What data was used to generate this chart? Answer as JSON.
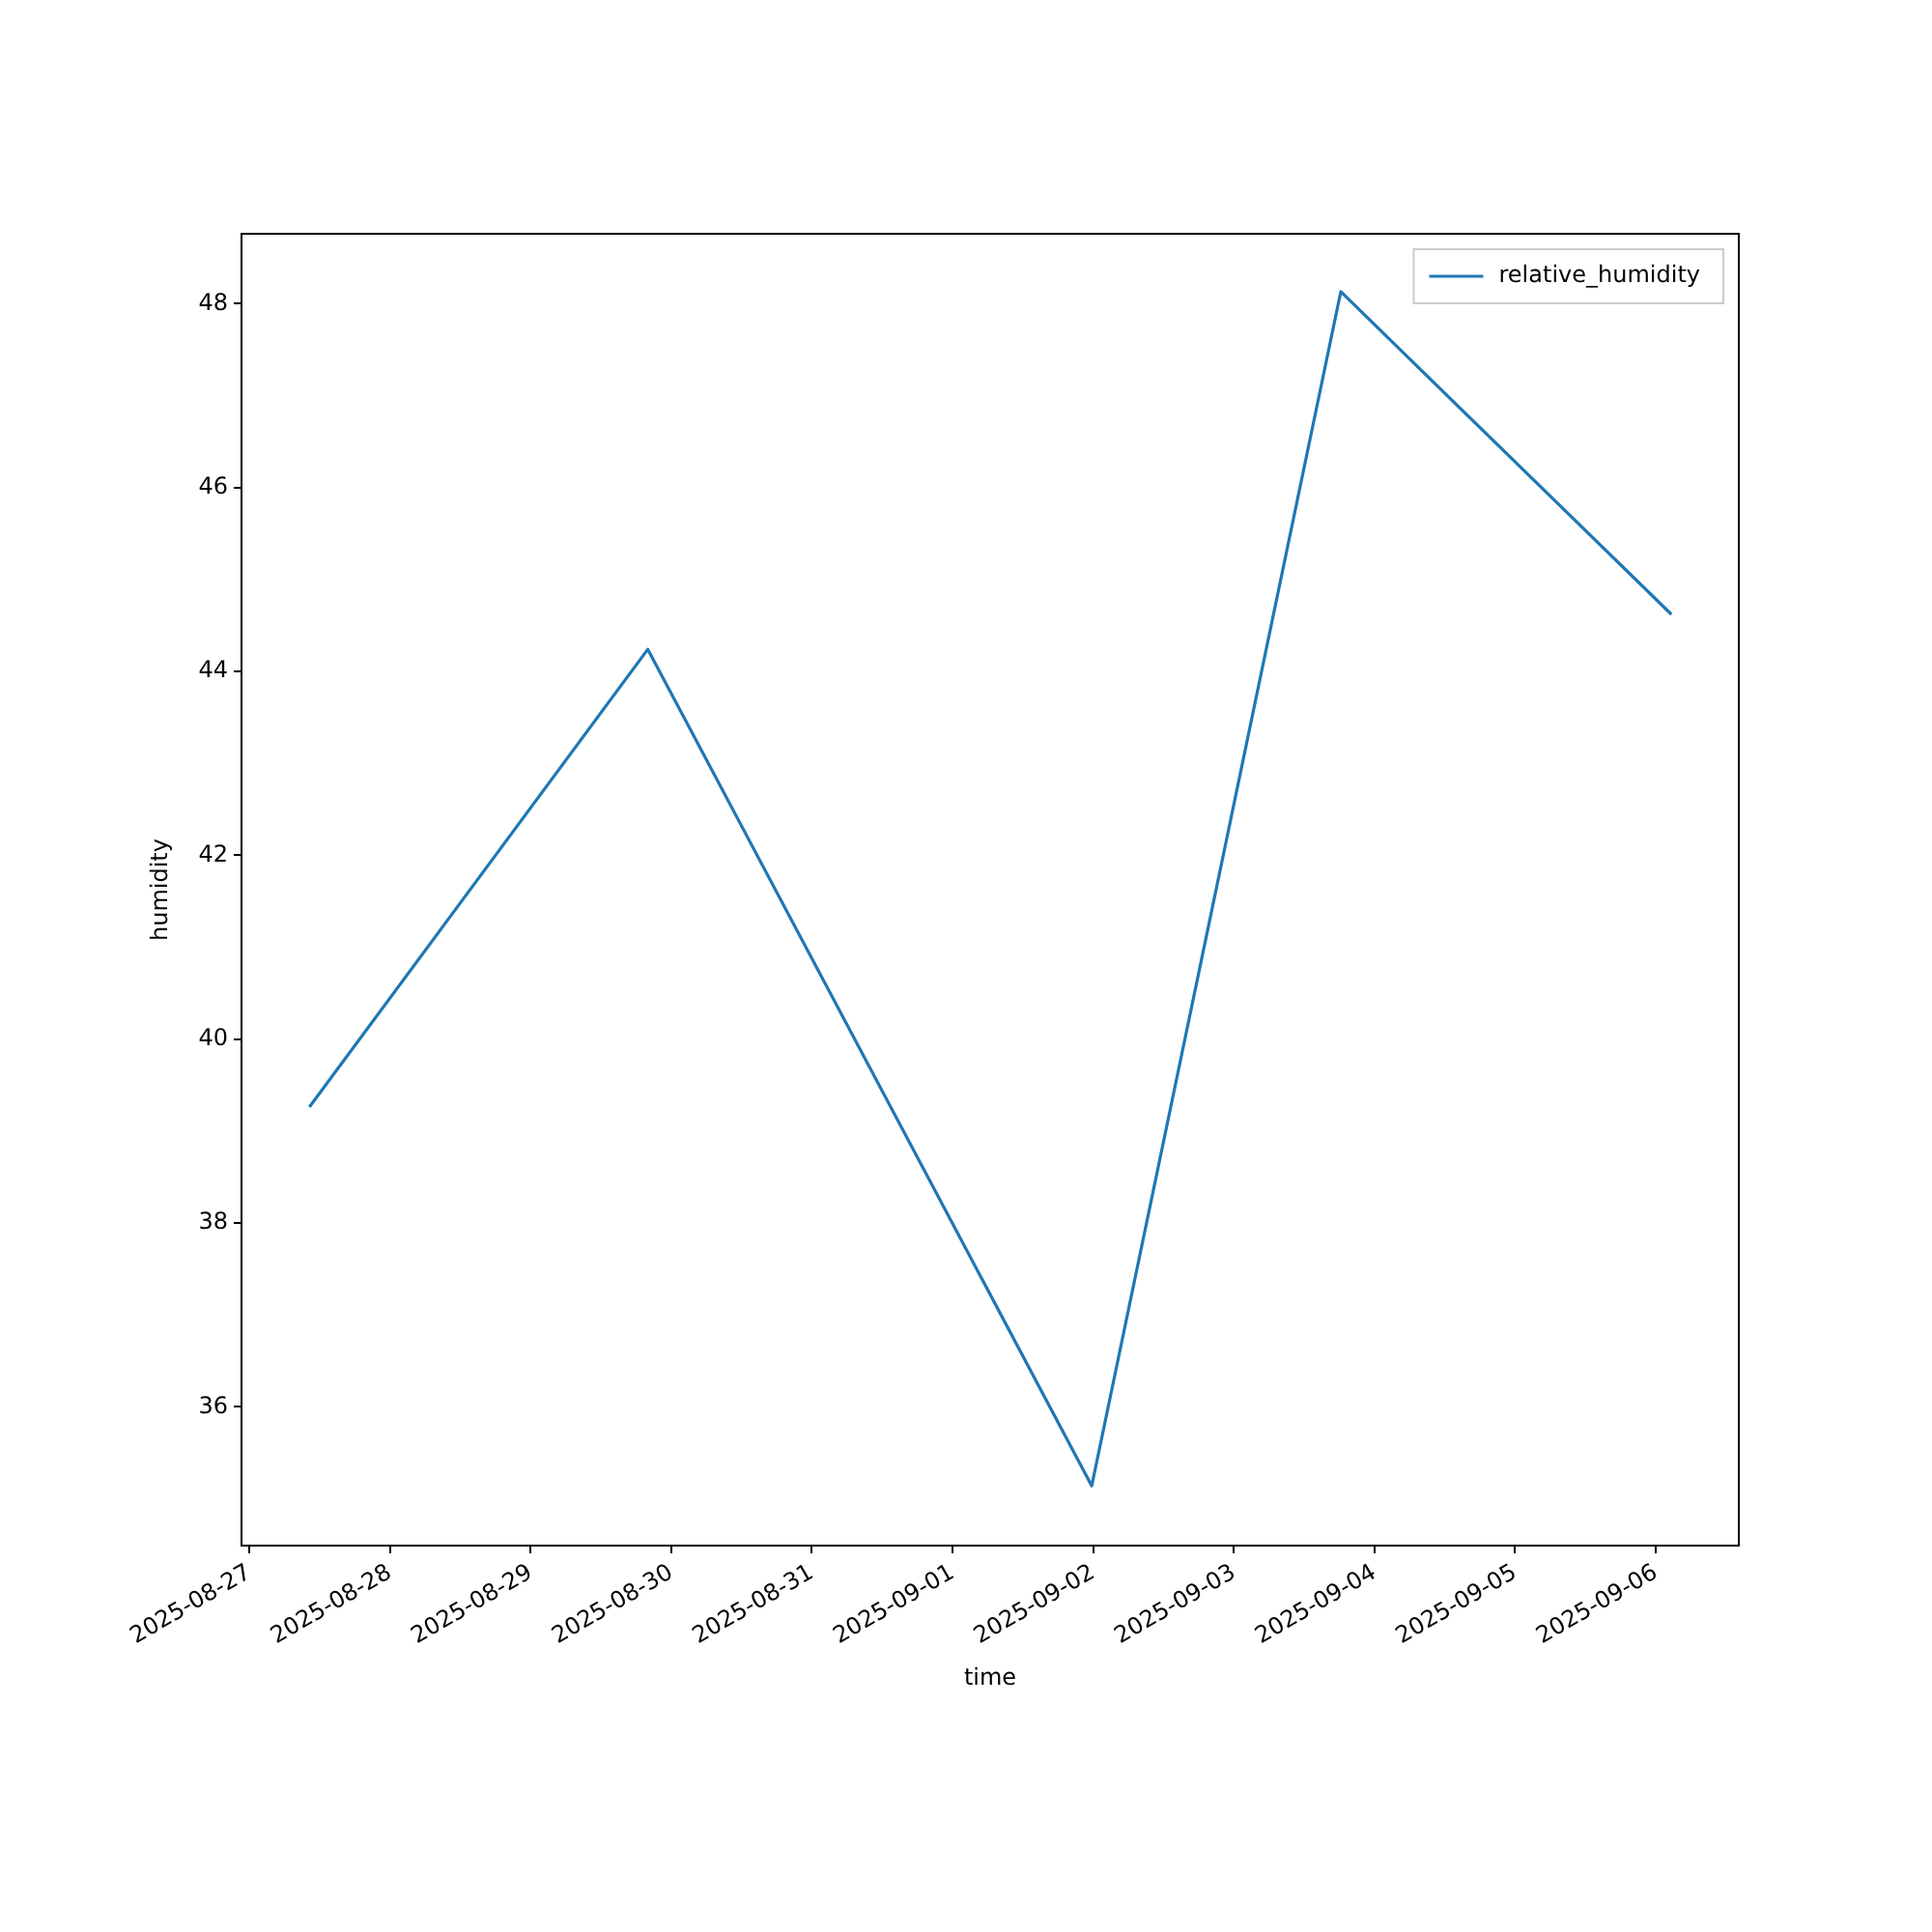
{
  "chart_data": {
    "type": "line",
    "xlabel": "time",
    "ylabel": "humidity",
    "x": [
      "2025-08-27T10:15",
      "2025-08-29T20:00",
      "2025-09-01T23:45",
      "2025-09-03T18:15",
      "2025-09-06T02:40"
    ],
    "series": [
      {
        "name": "relative_humidity",
        "color": "#1f77b4",
        "values": [
          39.26,
          44.24,
          35.14,
          48.13,
          44.62
        ]
      }
    ],
    "xlim": [
      "2025-08-26T22:40",
      "2025-09-06T14:10"
    ],
    "xticks": [
      "2025-08-27",
      "2025-08-28",
      "2025-08-29",
      "2025-08-30",
      "2025-08-31",
      "2025-09-01",
      "2025-09-02",
      "2025-09-03",
      "2025-09-04",
      "2025-09-05",
      "2025-09-06"
    ],
    "ylim": [
      34.49,
      48.76
    ],
    "yticks": [
      36,
      38,
      40,
      42,
      44,
      46,
      48
    ],
    "grid": false,
    "legend": "top right",
    "marker": "none",
    "line_style": "solid"
  }
}
